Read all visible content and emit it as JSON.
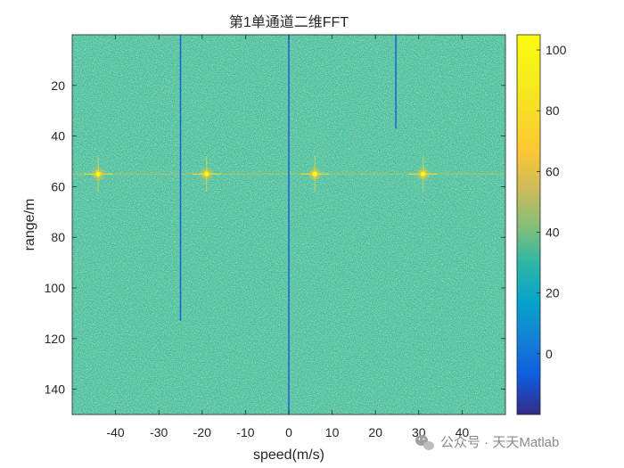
{
  "chart_data": {
    "type": "heatmap",
    "title": "第1单通道二维FFT",
    "xlabel": "speed(m/s)",
    "ylabel": "range/m",
    "xlim": [
      -50,
      50
    ],
    "ylim": [
      150,
      0
    ],
    "xticks": [
      -40,
      -30,
      -20,
      -10,
      0,
      10,
      20,
      30,
      40
    ],
    "xtick_labels": [
      "-40",
      "-30",
      "-20",
      "-10",
      "0",
      "10",
      "20",
      "30",
      "40"
    ],
    "yticks": [
      20,
      40,
      60,
      80,
      100,
      120,
      140
    ],
    "ytick_labels": [
      "20",
      "40",
      "60",
      "80",
      "100",
      "120",
      "140"
    ],
    "background_level": 55,
    "colorbar": {
      "colormap": "parula",
      "range": [
        -20,
        105
      ],
      "ticks": [
        0,
        20,
        40,
        60,
        80,
        100
      ],
      "tick_labels": [
        "0",
        "20",
        "40",
        "60",
        "80",
        "100"
      ]
    },
    "ridge_line": {
      "range": 55,
      "level": 68
    },
    "peaks": [
      {
        "speed": -44,
        "range": 55,
        "value": 100
      },
      {
        "speed": -19,
        "range": 55,
        "value": 100
      },
      {
        "speed": 6,
        "range": 55,
        "value": 100
      },
      {
        "speed": 31,
        "range": 55,
        "value": 100
      }
    ],
    "notch_lines": [
      {
        "speed": -25,
        "range_start": 0,
        "range_end": 113,
        "value": 5
      },
      {
        "speed": 0,
        "range_start": 0,
        "range_end": 150,
        "value": 5
      },
      {
        "speed": 24.7,
        "range_start": 0,
        "range_end": 37,
        "value": 5
      }
    ],
    "grid": false,
    "legend": "none"
  },
  "watermark": {
    "text": "公众号 · 天天Matlab",
    "icon": "wechat-icon"
  }
}
